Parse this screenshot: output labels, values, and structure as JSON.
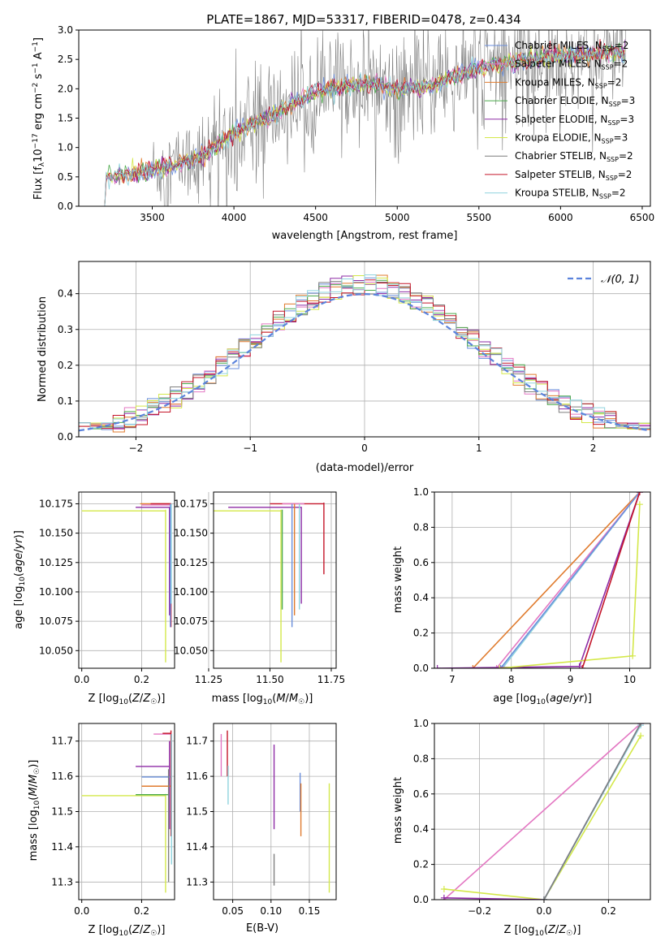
{
  "figure_title": "PLATE=1867, MJD=53317, FIBERID=0478, z=0.434",
  "colors": {
    "chabrier_miles": "#6b8fdc",
    "salpeter_miles": "#e377c2",
    "kroupa_miles": "#e07b2e",
    "chabrier_elodie": "#4caa4c",
    "salpeter_elodie": "#8e2ba6",
    "kroupa_elodie": "#d4e84a",
    "chabrier_stelib": "#7f7f7f",
    "salpeter_stelib": "#c4162a",
    "kroupa_stelib": "#8fd3de",
    "gaussian": "#5b83dc"
  },
  "chart_data": [
    {
      "id": "spectrum",
      "type": "line",
      "title": "PLATE=1867, MJD=53317, FIBERID=0478, z=0.434",
      "xlabel": "wavelength [Angstrom, rest frame]",
      "xlim": [
        3050,
        6550
      ],
      "ylim": [
        0,
        3.0
      ],
      "xticks": [
        3500,
        4000,
        4500,
        5000,
        5500,
        6000,
        6500
      ],
      "yticks": [
        0.0,
        0.5,
        1.0,
        1.5,
        2.0,
        2.5,
        3.0
      ],
      "legend_position": "top-right",
      "data_range": [
        3200,
        6400
      ],
      "data_note_anchor_points": {
        "x": [
          3200,
          3500,
          3800,
          4000,
          4200,
          4500,
          4800,
          5000,
          5200,
          5500,
          5800,
          6000,
          6200,
          6400
        ],
        "y": [
          0.5,
          0.6,
          0.85,
          1.25,
          1.5,
          1.95,
          2.1,
          2.0,
          2.05,
          2.35,
          2.5,
          2.55,
          2.6,
          2.6
        ]
      },
      "legend": [
        {
          "label": "Chabrier MILES, N",
          "sub": "SSP",
          "suffix": "=2",
          "color": "#6b8fdc"
        },
        {
          "label": "Salpeter MILES, N",
          "sub": "SSP",
          "suffix": "=2",
          "color": "#e377c2"
        },
        {
          "label": "Kroupa MILES, N",
          "sub": "SSP",
          "suffix": "=2",
          "color": "#e07b2e"
        },
        {
          "label": "Chabrier ELODIE, N",
          "sub": "SSP",
          "suffix": "=3",
          "color": "#4caa4c"
        },
        {
          "label": "Salpeter ELODIE, N",
          "sub": "SSP",
          "suffix": "=3",
          "color": "#8e2ba6"
        },
        {
          "label": "Kroupa ELODIE, N",
          "sub": "SSP",
          "suffix": "=3",
          "color": "#d4e84a"
        },
        {
          "label": "Chabrier STELIB, N",
          "sub": "SSP",
          "suffix": "=2",
          "color": "#7f7f7f"
        },
        {
          "label": "Salpeter STELIB, N",
          "sub": "SSP",
          "suffix": "=2",
          "color": "#c4162a"
        },
        {
          "label": "Kroupa STELIB, N",
          "sub": "SSP",
          "suffix": "=2",
          "color": "#8fd3de"
        }
      ]
    },
    {
      "id": "residuals",
      "type": "line",
      "xlabel": "(data-model)/error",
      "ylabel": "Normed distribution",
      "xlim": [
        -2.5,
        2.5
      ],
      "ylim": [
        0,
        0.49
      ],
      "xticks": [
        -2,
        -1,
        0,
        1,
        2
      ],
      "yticks": [
        0.0,
        0.1,
        0.2,
        0.3,
        0.4
      ],
      "grid": true,
      "legend_position": "top-right",
      "gaussian_label": "𝒩(0, 1)",
      "bin_width": 0.1
    },
    {
      "id": "age_vs_Z",
      "type": "line",
      "xlabel": "Z [log₁₀(Z/Z☉)]",
      "ylabel": "age  [log₁₀(age/yr)]",
      "xlim": [
        -0.01,
        0.31
      ],
      "ylim": [
        10.035,
        10.185
      ],
      "xticks": [
        0.0,
        0.2
      ],
      "xticklabels": [
        "0.0",
        "0.2"
      ],
      "yticks": [
        10.05,
        10.075,
        10.1,
        10.125,
        10.15,
        10.175
      ],
      "yticklabels": [
        "10.050",
        "10.075",
        "10.100",
        "10.125",
        "10.150",
        "10.175"
      ],
      "grid": true,
      "segments": [
        {
          "color": "#d4e84a",
          "pts": [
            [
              0.0,
              10.169
            ],
            [
              0.28,
              10.169
            ]
          ]
        },
        {
          "color": "#d4e84a",
          "pts": [
            [
              0.28,
              10.04
            ],
            [
              0.28,
              10.17
            ]
          ]
        },
        {
          "color": "#8e2ba6",
          "pts": [
            [
              0.18,
              10.172
            ],
            [
              0.295,
              10.172
            ]
          ]
        },
        {
          "color": "#8e2ba6",
          "pts": [
            [
              0.293,
              10.08
            ],
            [
              0.293,
              10.172
            ]
          ]
        },
        {
          "color": "#e377c2",
          "pts": [
            [
              0.2,
              10.174
            ],
            [
              0.298,
              10.174
            ]
          ]
        },
        {
          "color": "#e07b2e",
          "pts": [
            [
              0.195,
              10.175
            ],
            [
              0.297,
              10.175
            ]
          ]
        },
        {
          "color": "#c4162a",
          "pts": [
            [
              0.23,
              10.175
            ],
            [
              0.299,
              10.175
            ]
          ]
        },
        {
          "color": "#c4162a",
          "pts": [
            [
              0.298,
              10.07
            ],
            [
              0.298,
              10.175
            ]
          ]
        },
        {
          "color": "#6b8fdc",
          "pts": [
            [
              0.296,
              10.07
            ],
            [
              0.296,
              10.175
            ]
          ]
        },
        {
          "color": "#8fd3de",
          "pts": [
            [
              0.299,
              10.09
            ],
            [
              0.299,
              10.175
            ]
          ]
        }
      ]
    },
    {
      "id": "age_vs_mass",
      "type": "line",
      "xlabel": "mass [log₁₀(M/M☉)]",
      "xlim": [
        11.27,
        11.77
      ],
      "ylim": [
        10.035,
        10.185
      ],
      "xticks": [
        11.25,
        11.5,
        11.75
      ],
      "xticklabels": [
        "11.25",
        "11.50",
        "11.75"
      ],
      "yticks": [
        10.05,
        10.075,
        10.1,
        10.125,
        10.15,
        10.175
      ],
      "yticklabels": [
        "10.050",
        "10.075",
        "10.100",
        "10.125",
        "10.150",
        "10.175"
      ],
      "grid": true,
      "segments": [
        {
          "color": "#d4e84a",
          "pts": [
            [
              11.27,
              10.169
            ],
            [
              11.545,
              10.169
            ]
          ]
        },
        {
          "color": "#d4e84a",
          "pts": [
            [
              11.545,
              10.04
            ],
            [
              11.545,
              10.17
            ]
          ]
        },
        {
          "color": "#8e2ba6",
          "pts": [
            [
              11.33,
              10.172
            ],
            [
              11.63,
              10.172
            ]
          ]
        },
        {
          "color": "#8e2ba6",
          "pts": [
            [
              11.628,
              10.09
            ],
            [
              11.628,
              10.172
            ]
          ]
        },
        {
          "color": "#c4162a",
          "pts": [
            [
              11.5,
              10.175
            ],
            [
              11.72,
              10.175
            ]
          ]
        },
        {
          "color": "#c4162a",
          "pts": [
            [
              11.72,
              10.115
            ],
            [
              11.72,
              10.176
            ]
          ]
        },
        {
          "color": "#e377c2",
          "pts": [
            [
              11.55,
              10.175
            ],
            [
              11.64,
              10.175
            ]
          ]
        },
        {
          "color": "#e07b2e",
          "pts": [
            [
              11.6,
              10.08
            ],
            [
              11.6,
              10.175
            ]
          ]
        },
        {
          "color": "#6b8fdc",
          "pts": [
            [
              11.59,
              10.07
            ],
            [
              11.59,
              10.175
            ]
          ]
        },
        {
          "color": "#8fd3de",
          "pts": [
            [
              11.62,
              10.085
            ],
            [
              11.62,
              10.175
            ]
          ]
        },
        {
          "color": "#4caa4c",
          "pts": [
            [
              11.55,
              10.085
            ],
            [
              11.55,
              10.17
            ]
          ]
        }
      ]
    },
    {
      "id": "mass_weight_vs_age",
      "type": "line",
      "xlabel": "age  [log₁₀(age/yr)]",
      "ylabel": "mass weight",
      "xlim": [
        6.7,
        10.35
      ],
      "ylim": [
        0,
        1.0
      ],
      "xticks": [
        7,
        8,
        9,
        10
      ],
      "yticks": [
        0.0,
        0.2,
        0.4,
        0.6,
        0.8,
        1.0
      ],
      "grid": true,
      "series": [
        {
          "color": "#e07b2e",
          "pts": [
            [
              7.35,
              0.0
            ],
            [
              10.17,
              1.0
            ]
          ]
        },
        {
          "color": "#e377c2",
          "pts": [
            [
              7.75,
              0.0
            ],
            [
              10.17,
              1.0
            ]
          ]
        },
        {
          "color": "#8fd3de",
          "pts": [
            [
              7.85,
              0.0
            ],
            [
              10.17,
              1.0
            ]
          ]
        },
        {
          "color": "#6b8fdc",
          "pts": [
            [
              7.82,
              0.0
            ],
            [
              10.17,
              1.0
            ]
          ]
        },
        {
          "color": "#8e2ba6",
          "pts": [
            [
              6.75,
              0.0
            ],
            [
              9.15,
              0.01
            ],
            [
              10.17,
              1.0
            ]
          ]
        },
        {
          "color": "#d4e84a",
          "pts": [
            [
              7.8,
              0.0
            ],
            [
              10.05,
              0.07
            ],
            [
              10.17,
              0.93
            ]
          ]
        },
        {
          "color": "#c4162a",
          "pts": [
            [
              9.2,
              0.0
            ],
            [
              10.17,
              1.0
            ]
          ]
        }
      ]
    },
    {
      "id": "mass_vs_Z",
      "type": "line",
      "xlabel": "Z [log₁₀(Z/Z☉)]",
      "ylabel": "mass [log₁₀(M/M☉)]",
      "xlim": [
        -0.01,
        0.31
      ],
      "ylim": [
        11.25,
        11.75
      ],
      "xticks": [
        0.0,
        0.2
      ],
      "xticklabels": [
        "0.0",
        "0.2"
      ],
      "yticks": [
        11.3,
        11.4,
        11.5,
        11.6,
        11.7
      ],
      "yticklabels": [
        "11.3",
        "11.4",
        "11.5",
        "11.6",
        "11.7"
      ],
      "grid": true,
      "segments": [
        {
          "color": "#d4e84a",
          "pts": [
            [
              0.0,
              11.545
            ],
            [
              0.28,
              11.545
            ]
          ]
        },
        {
          "color": "#d4e84a",
          "pts": [
            [
              0.28,
              11.27
            ],
            [
              0.28,
              11.55
            ]
          ]
        },
        {
          "color": "#4caa4c",
          "pts": [
            [
              0.18,
              11.548
            ],
            [
              0.29,
              11.548
            ]
          ]
        },
        {
          "color": "#8e2ba6",
          "pts": [
            [
              0.18,
              11.628
            ],
            [
              0.295,
              11.628
            ]
          ]
        },
        {
          "color": "#8e2ba6",
          "pts": [
            [
              0.293,
              11.45
            ],
            [
              0.293,
              11.7
            ]
          ]
        },
        {
          "color": "#6b8fdc",
          "pts": [
            [
              0.2,
              11.598
            ],
            [
              0.296,
              11.598
            ]
          ]
        },
        {
          "color": "#e07b2e",
          "pts": [
            [
              0.2,
              11.572
            ],
            [
              0.297,
              11.572
            ]
          ]
        },
        {
          "color": "#e377c2",
          "pts": [
            [
              0.24,
              11.72
            ],
            [
              0.298,
              11.72
            ]
          ]
        },
        {
          "color": "#c4162a",
          "pts": [
            [
              0.27,
              11.722
            ],
            [
              0.299,
              11.722
            ]
          ]
        },
        {
          "color": "#c4162a",
          "pts": [
            [
              0.298,
              11.43
            ],
            [
              0.298,
              11.73
            ]
          ]
        },
        {
          "color": "#7f7f7f",
          "pts": [
            [
              0.29,
              11.3
            ],
            [
              0.29,
              11.62
            ]
          ]
        },
        {
          "color": "#8fd3de",
          "pts": [
            [
              0.3,
              11.35
            ],
            [
              0.3,
              11.72
            ]
          ]
        }
      ]
    },
    {
      "id": "mass_vs_ebv",
      "type": "line",
      "xlabel": "E(B-V)",
      "xlim": [
        0.025,
        0.185
      ],
      "ylim": [
        11.25,
        11.75
      ],
      "xticks": [
        0.05,
        0.1,
        0.15
      ],
      "xticklabels": [
        "0.05",
        "0.10",
        "0.15"
      ],
      "yticks": [
        11.3,
        11.4,
        11.5,
        11.6,
        11.7
      ],
      "yticklabels": [
        "11.3",
        "11.4",
        "11.5",
        "11.6",
        "11.7"
      ],
      "grid": true,
      "segments": [
        {
          "color": "#e377c2",
          "pts": [
            [
              0.035,
              11.6
            ],
            [
              0.035,
              11.72
            ]
          ]
        },
        {
          "color": "#c4162a",
          "pts": [
            [
              0.043,
              11.6
            ],
            [
              0.043,
              11.73
            ]
          ]
        },
        {
          "color": "#8fd3de",
          "pts": [
            [
              0.044,
              11.52
            ],
            [
              0.044,
              11.63
            ]
          ]
        },
        {
          "color": "#8e2ba6",
          "pts": [
            [
              0.104,
              11.45
            ],
            [
              0.104,
              11.69
            ]
          ]
        },
        {
          "color": "#7f7f7f",
          "pts": [
            [
              0.104,
              11.29
            ],
            [
              0.104,
              11.38
            ]
          ]
        },
        {
          "color": "#6b8fdc",
          "pts": [
            [
              0.138,
              11.5
            ],
            [
              0.138,
              11.61
            ]
          ]
        },
        {
          "color": "#e07b2e",
          "pts": [
            [
              0.139,
              11.43
            ],
            [
              0.139,
              11.58
            ]
          ]
        },
        {
          "color": "#d4e84a",
          "pts": [
            [
              0.176,
              11.27
            ],
            [
              0.176,
              11.58
            ]
          ]
        }
      ]
    },
    {
      "id": "mass_weight_vs_Z",
      "type": "line",
      "xlabel": "Z [log₁₀(Z/Z☉)]",
      "ylabel": "mass weight",
      "xlim": [
        -0.34,
        0.33
      ],
      "ylim": [
        0,
        1.0
      ],
      "xticks": [
        -0.2,
        0.0,
        0.2
      ],
      "xticklabels": [
        "−0.2",
        "0.0",
        "0.2"
      ],
      "yticks": [
        0.0,
        0.2,
        0.4,
        0.6,
        0.8,
        1.0
      ],
      "grid": true,
      "series": [
        {
          "color": "#e377c2",
          "pts": [
            [
              -0.31,
              0.0
            ],
            [
              0.3,
              1.0
            ]
          ]
        },
        {
          "color": "#d4e84a",
          "pts": [
            [
              -0.31,
              0.06
            ],
            [
              0.0,
              0.0
            ],
            [
              0.3,
              0.93
            ]
          ]
        },
        {
          "color": "#8e2ba6",
          "pts": [
            [
              -0.31,
              0.01
            ],
            [
              0.0,
              0.0
            ],
            [
              0.3,
              1.0
            ]
          ]
        },
        {
          "color": "#6b8fdc",
          "pts": [
            [
              0.0,
              0.0
            ],
            [
              0.3,
              1.0
            ]
          ]
        },
        {
          "color": "#8fd3de",
          "pts": [
            [
              0.0,
              0.0
            ],
            [
              0.3,
              0.99
            ]
          ]
        },
        {
          "color": "#7f7f7f",
          "pts": [
            [
              0.0,
              0.0
            ],
            [
              0.3,
              1.0
            ]
          ]
        }
      ]
    }
  ]
}
